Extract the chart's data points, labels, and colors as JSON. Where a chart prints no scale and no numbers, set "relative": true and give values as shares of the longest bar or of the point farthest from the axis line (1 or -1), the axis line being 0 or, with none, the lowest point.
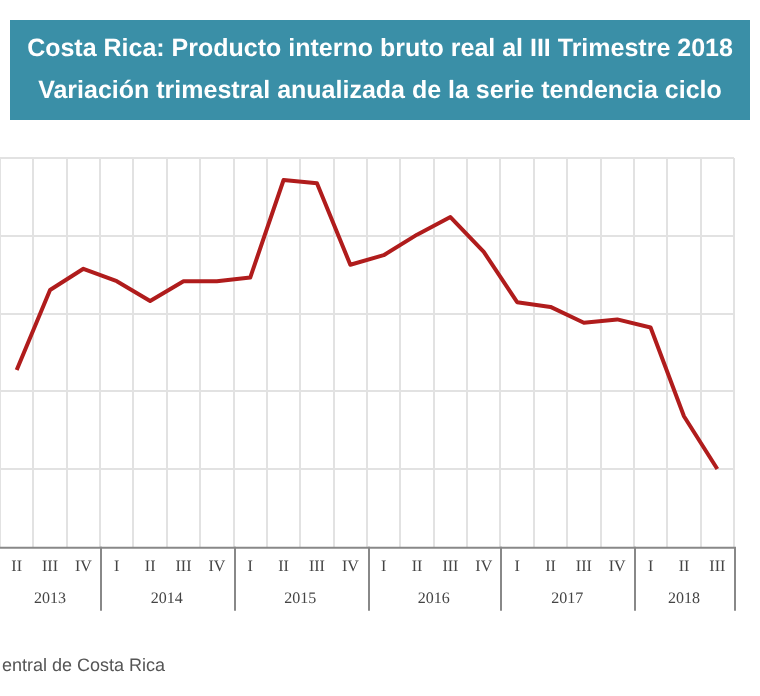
{
  "chart_data": {
    "type": "line",
    "title": "Costa Rica: Producto interno bruto real al III Trimestre 2018",
    "subtitle": "Variación trimestral anualizada de la serie tendencia ciclo",
    "categories": [
      "II",
      "III",
      "IV",
      "I",
      "II",
      "III",
      "IV",
      "I",
      "II",
      "III",
      "IV",
      "I",
      "II",
      "III",
      "IV",
      "I",
      "II",
      "III",
      "IV",
      "I",
      "II",
      "III"
    ],
    "relative": true,
    "series": [
      {
        "color": "#b01c1c",
        "values": [
          0.482,
          0.7,
          0.758,
          0.724,
          0.67,
          0.724,
          0.724,
          0.734,
          1,
          0.991,
          0.769,
          0.795,
          0.851,
          0.899,
          0.804,
          0.667,
          0.654,
          0.611,
          0.62,
          0.598,
          0.356,
          0.212
        ]
      }
    ],
    "annotations": [
      "2013",
      "2014",
      "2015",
      "2016",
      "2017",
      "2018",
      "entral de Costa Rica"
    ],
    "grid": true,
    "legend": false,
    "marker": "none",
    "line_style": "solid"
  }
}
